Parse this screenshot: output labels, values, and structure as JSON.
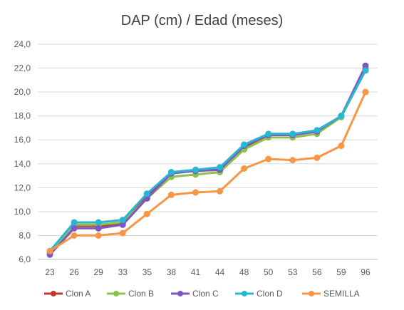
{
  "chart_data": {
    "type": "line",
    "title": "DAP (cm) / Edad (meses)",
    "xlabel": "",
    "ylabel": "",
    "categories": [
      "23",
      "26",
      "29",
      "33",
      "35",
      "38",
      "41",
      "44",
      "48",
      "50",
      "53",
      "56",
      "59",
      "96"
    ],
    "ylim": [
      6.0,
      24.0
    ],
    "yticks": [
      "6,0",
      "8,0",
      "10,0",
      "12,0",
      "14,0",
      "16,0",
      "18,0",
      "20,0",
      "22,0",
      "24,0"
    ],
    "grid": true,
    "legend_position": "bottom",
    "series": [
      {
        "name": "Clon A",
        "color": "#C0392B",
        "values": [
          6.6,
          8.8,
          8.8,
          9.0,
          11.3,
          13.2,
          13.4,
          13.5,
          15.4,
          16.4,
          16.4,
          16.7,
          18.0,
          21.9
        ]
      },
      {
        "name": "Clon B",
        "color": "#8BC34A",
        "values": [
          6.6,
          8.9,
          8.9,
          9.1,
          11.1,
          12.9,
          13.1,
          13.3,
          15.2,
          16.2,
          16.2,
          16.5,
          17.9,
          21.8
        ]
      },
      {
        "name": "Clon C",
        "color": "#7E57C2",
        "values": [
          6.4,
          8.6,
          8.6,
          8.9,
          11.1,
          13.2,
          13.4,
          13.5,
          15.5,
          16.4,
          16.4,
          16.7,
          18.0,
          22.2
        ]
      },
      {
        "name": "Clon D",
        "color": "#29B6D3",
        "values": [
          6.7,
          9.1,
          9.1,
          9.3,
          11.5,
          13.3,
          13.5,
          13.7,
          15.6,
          16.5,
          16.5,
          16.8,
          18.0,
          21.8
        ]
      },
      {
        "name": "SEMILLA",
        "color": "#F79646",
        "values": [
          6.7,
          8.0,
          8.0,
          8.2,
          9.8,
          11.4,
          11.6,
          11.7,
          13.6,
          14.4,
          14.3,
          14.5,
          15.5,
          20.0
        ]
      }
    ]
  }
}
